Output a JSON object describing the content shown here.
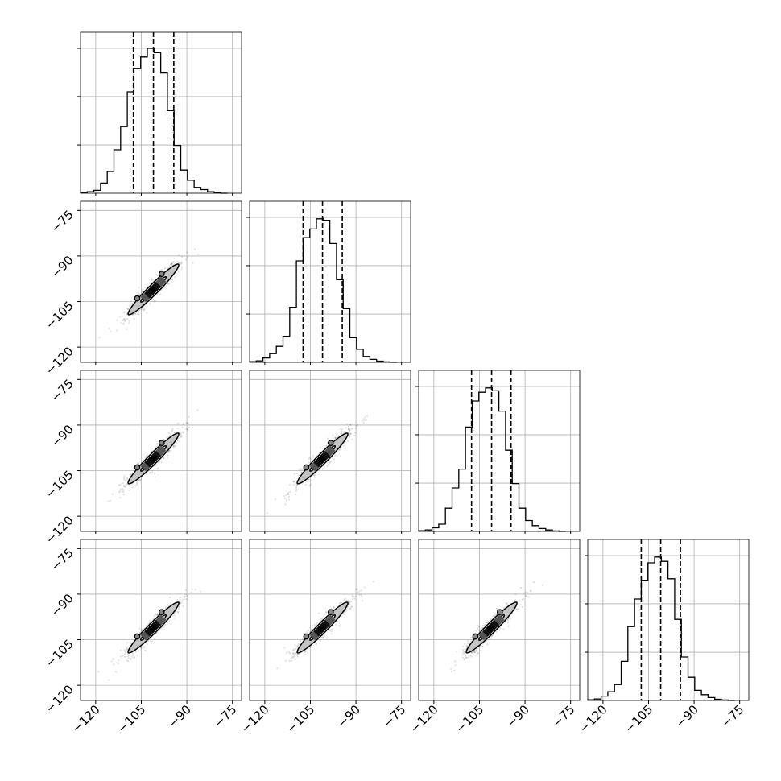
{
  "chart_data": {
    "type": "corner",
    "n_params": 4,
    "axis_range": [
      -125,
      -72
    ],
    "ticks": [
      -120,
      -105,
      -90,
      -75
    ],
    "tick_labels": [
      "−120",
      "−105",
      "−90",
      "−75"
    ],
    "grid": true,
    "hist_bin_edges": [
      -125,
      -122.8,
      -120.6,
      -118.4,
      -116.2,
      -114,
      -111.8,
      -109.6,
      -107.4,
      -105.2,
      -103,
      -100.8,
      -98.6,
      -96.4,
      -94.2,
      -92,
      -89.8,
      -87.6,
      -85.4,
      -83.2,
      -81,
      -78.8,
      -76.6
    ],
    "diagonal": [
      {
        "param": 0,
        "counts": [
          0.005,
          0.01,
          0.02,
          0.07,
          0.15,
          0.3,
          0.46,
          0.7,
          0.86,
          0.94,
          1.0,
          0.97,
          0.83,
          0.57,
          0.33,
          0.16,
          0.09,
          0.04,
          0.025,
          0.01,
          0.003,
          0
        ],
        "quantiles": [
          -107.6,
          -101.0,
          -94.3
        ]
      },
      {
        "param": 1,
        "counts": [
          0.005,
          0.01,
          0.03,
          0.06,
          0.11,
          0.18,
          0.38,
          0.7,
          0.86,
          0.92,
          0.99,
          0.98,
          0.82,
          0.57,
          0.37,
          0.17,
          0.09,
          0.04,
          0.02,
          0.008,
          0.003,
          0
        ],
        "quantiles": [
          -107.4,
          -101.0,
          -94.5
        ]
      },
      {
        "param": 2,
        "counts": [
          0.005,
          0.01,
          0.025,
          0.05,
          0.16,
          0.3,
          0.43,
          0.72,
          0.9,
          0.96,
          0.99,
          0.97,
          0.83,
          0.56,
          0.33,
          0.16,
          0.075,
          0.04,
          0.02,
          0.01,
          0.003,
          0
        ],
        "quantiles": [
          -107.6,
          -101.0,
          -94.6
        ]
      },
      {
        "param": 3,
        "counts": [
          0.005,
          0.01,
          0.03,
          0.06,
          0.11,
          0.27,
          0.51,
          0.7,
          0.83,
          0.95,
          0.99,
          0.96,
          0.84,
          0.56,
          0.3,
          0.16,
          0.07,
          0.04,
          0.02,
          0.008,
          0.003,
          0
        ],
        "quantiles": [
          -107.4,
          -101.0,
          -94.5
        ]
      }
    ],
    "pair_center": [
      -101.0,
      -101.0
    ],
    "pair_spread": [
      6.5,
      0.9
    ],
    "offdiagonal": [
      {
        "row": 1,
        "col": 0
      },
      {
        "row": 2,
        "col": 0
      },
      {
        "row": 2,
        "col": 1
      },
      {
        "row": 3,
        "col": 0
      },
      {
        "row": 3,
        "col": 1
      },
      {
        "row": 3,
        "col": 2
      }
    ]
  }
}
